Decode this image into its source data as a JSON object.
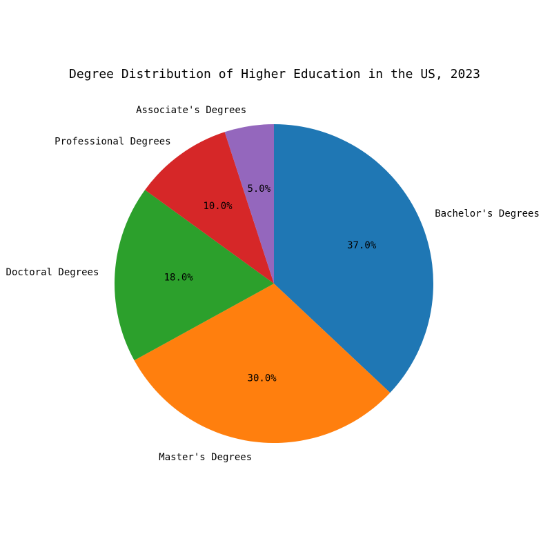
{
  "chart_data": {
    "type": "pie",
    "title": "Degree Distribution of Higher Education in the US, 2023",
    "categories": [
      "Bachelor's Degrees",
      "Master's Degrees",
      "Doctoral Degrees",
      "Professional Degrees",
      "Associate's Degrees"
    ],
    "values": [
      37.0,
      30.0,
      18.0,
      10.0,
      5.0
    ],
    "percent_labels": [
      "37.0%",
      "30.0%",
      "18.0%",
      "10.0%",
      "5.0%"
    ],
    "colors": [
      "#1f77b4",
      "#ff7f0e",
      "#2ca02c",
      "#d62728",
      "#9467bd"
    ],
    "start_angle_deg": 90,
    "direction": "clockwise",
    "legend": "none"
  }
}
